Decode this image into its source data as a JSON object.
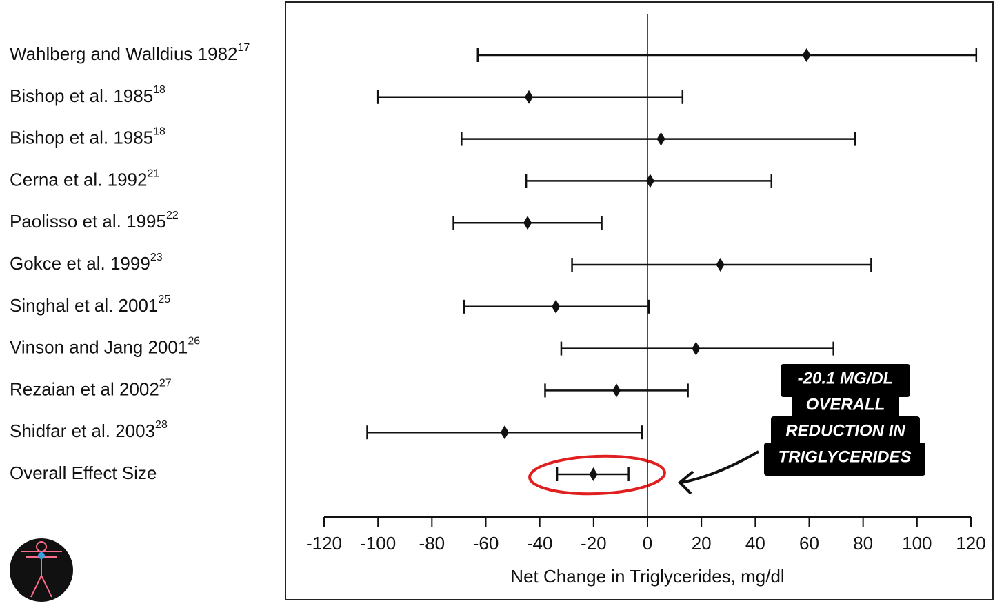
{
  "chart_data": {
    "type": "forest",
    "studies": [
      {
        "name": "Wahlberg and Walldius 1982",
        "ref": "17"
      },
      {
        "name": "Bishop et al. 1985",
        "ref": "18"
      },
      {
        "name": "Bishop et al. 1985",
        "ref": "18"
      },
      {
        "name": "Cerna et al. 1992",
        "ref": "21"
      },
      {
        "name": "Paolisso et al. 1995",
        "ref": "22"
      },
      {
        "name": "Gokce et al. 1999",
        "ref": "23"
      },
      {
        "name": "Singhal et al. 2001",
        "ref": "25"
      },
      {
        "name": "Vinson and Jang 2001",
        "ref": "26"
      },
      {
        "name": "Rezaian et al 2002",
        "ref": "27"
      },
      {
        "name": "Shidfar et al. 2003",
        "ref": "28"
      },
      {
        "name": "Overall Effect Size"
      }
    ],
    "values": [
      59,
      -44,
      5,
      1,
      -44.5,
      27,
      -34,
      18,
      -11.5,
      -53,
      -20.1
    ],
    "lower": [
      -63,
      -100,
      -69,
      -45,
      -72,
      -28,
      -68,
      -32,
      -38,
      -104,
      -33.5
    ],
    "upper": [
      122,
      13,
      77,
      46,
      -17,
      83,
      0.5,
      69,
      15,
      -2,
      -7
    ],
    "color": "#111111",
    "xlabel": "Net Change in Triglycerides, mg/dl",
    "xlim": [
      -120,
      120
    ],
    "xticks": [
      -120,
      -100,
      -80,
      -60,
      -40,
      -20,
      0,
      20,
      40,
      60,
      80,
      100,
      120
    ],
    "annotation": [
      "-20.1 MG/DL",
      "OVERALL",
      "REDUCTION IN",
      "TRIGLYCERIDES"
    ]
  }
}
